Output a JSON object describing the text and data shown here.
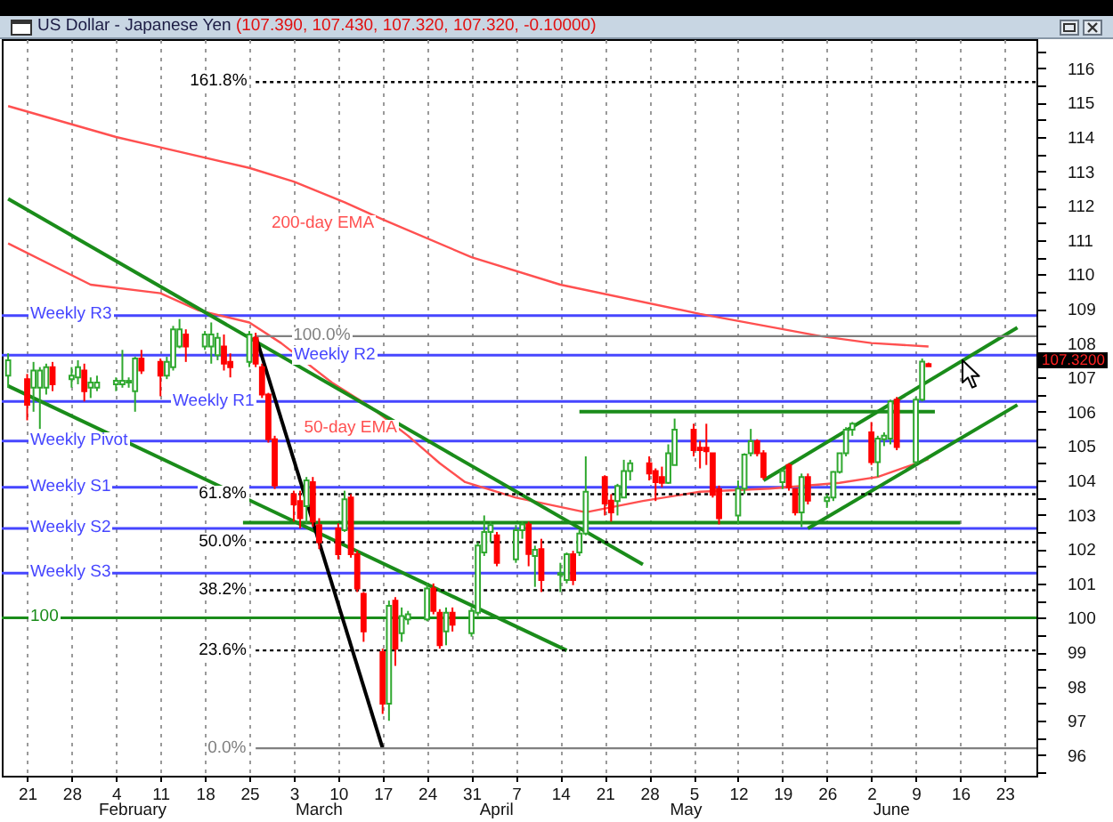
{
  "chart_data": {
    "type": "candlestick",
    "title": "US Dollar - Japanese Yen",
    "subtitle": "(107.390, 107.430, 107.320, 107.320, -0.10000)",
    "x": [
      "--01-18",
      "--01-21",
      "--01-22",
      "--01-23",
      "--01-24",
      "--01-25",
      "--01-28",
      "--01-29",
      "--01-30",
      "--01-31",
      "--02-01",
      "--02-04",
      "--02-05",
      "--02-06",
      "--02-07",
      "--02-08",
      "--02-11",
      "--02-12",
      "--02-13",
      "--02-14",
      "--02-15",
      "--02-18",
      "--02-19",
      "--02-20",
      "--02-21",
      "--02-22",
      "--02-25",
      "--02-26",
      "--02-27",
      "--02-28",
      "--02-29",
      "--03-03",
      "--03-04",
      "--03-05",
      "--03-06",
      "--03-07",
      "--03-10",
      "--03-11",
      "--03-12",
      "--03-13",
      "--03-14",
      "--03-17",
      "--03-18",
      "--03-19",
      "--03-20",
      "--03-21",
      "--03-24",
      "--03-25",
      "--03-26",
      "--03-27",
      "--03-28",
      "--03-31",
      "--04-01",
      "--04-02",
      "--04-03",
      "--04-04",
      "--04-07",
      "--04-08",
      "--04-09",
      "--04-10",
      "--04-11",
      "--04-14",
      "--04-15",
      "--04-16",
      "--04-17",
      "--04-18",
      "--04-21",
      "--04-22",
      "--04-23",
      "--04-24",
      "--04-25",
      "--04-28",
      "--04-29",
      "--04-30",
      "--05-01",
      "--05-02",
      "--05-05",
      "--05-06",
      "--05-07",
      "--05-08",
      "--05-09",
      "--05-12",
      "--05-13",
      "--05-14",
      "--05-15",
      "--05-16",
      "--05-19",
      "--05-20",
      "--05-21",
      "--05-22",
      "--05-23",
      "--05-26",
      "--05-27",
      "--05-28",
      "--05-29",
      "--05-30",
      "--06-02",
      "--06-03",
      "--06-04",
      "--06-05",
      "--06-06",
      "--06-09",
      "--06-10",
      "--06-11"
    ],
    "ohlc": [
      [
        107.05,
        107.7,
        106.7,
        107.5
      ],
      [
        106.95,
        107.1,
        105.75,
        106.2
      ],
      [
        106.7,
        107.45,
        106.0,
        107.2
      ],
      [
        106.7,
        107.3,
        105.5,
        107.2
      ],
      [
        106.7,
        107.4,
        106.5,
        107.3
      ],
      [
        107.3,
        107.45,
        106.6,
        106.8
      ],
      [
        106.95,
        107.3,
        106.7,
        107.05
      ],
      [
        107.0,
        107.5,
        106.8,
        107.3
      ],
      [
        107.2,
        107.4,
        106.3,
        106.6
      ],
      [
        106.7,
        107.0,
        106.4,
        106.85
      ],
      [
        106.7,
        107.05,
        106.6,
        106.85
      ],
      [
        106.8,
        107.0,
        106.6,
        106.9
      ],
      [
        106.8,
        107.8,
        106.7,
        106.9
      ],
      [
        106.85,
        107.0,
        106.7,
        106.9
      ],
      [
        106.6,
        107.6,
        106.0,
        107.55
      ],
      [
        107.55,
        107.8,
        107.1,
        107.2
      ],
      [
        107.45,
        107.55,
        106.45,
        107.05
      ],
      [
        107.05,
        107.6,
        106.95,
        107.45
      ],
      [
        107.3,
        108.5,
        107.2,
        108.4
      ],
      [
        107.9,
        108.7,
        107.85,
        108.4
      ],
      [
        108.25,
        108.4,
        107.45,
        107.9
      ],
      [
        107.9,
        108.35,
        107.8,
        108.25
      ],
      [
        107.9,
        108.6,
        107.4,
        108.25
      ],
      [
        107.65,
        108.3,
        107.5,
        108.15
      ],
      [
        107.9,
        108.25,
        107.2,
        107.4
      ],
      [
        107.45,
        107.7,
        107.0,
        107.3
      ],
      [
        107.45,
        108.35,
        107.3,
        108.25
      ],
      [
        108.15,
        108.3,
        107.3,
        107.4
      ],
      [
        107.3,
        107.4,
        106.4,
        106.5
      ],
      [
        106.5,
        106.55,
        105.1,
        105.2
      ],
      [
        105.2,
        105.3,
        103.75,
        103.85
      ],
      [
        103.6,
        103.7,
        102.8,
        103.3
      ],
      [
        103.4,
        103.7,
        102.6,
        102.9
      ],
      [
        103.25,
        104.1,
        102.75,
        104.0
      ],
      [
        103.95,
        104.1,
        102.65,
        102.8
      ],
      [
        102.7,
        102.9,
        102.0,
        102.2
      ],
      [
        102.6,
        102.75,
        101.7,
        101.85
      ],
      [
        102.55,
        103.7,
        102.5,
        103.45
      ],
      [
        103.5,
        103.6,
        101.75,
        101.85
      ],
      [
        101.85,
        101.95,
        100.75,
        100.85
      ],
      [
        100.7,
        100.75,
        99.3,
        99.6
      ],
      [
        99.0,
        99.1,
        97.2,
        97.5
      ],
      [
        97.5,
        100.5,
        97.0,
        100.35
      ],
      [
        100.5,
        100.6,
        98.6,
        99.1
      ],
      [
        99.55,
        100.3,
        99.3,
        100.05
      ],
      [
        99.95,
        100.2,
        99.8,
        100.1
      ],
      [
        99.95,
        101.0,
        99.9,
        100.85
      ],
      [
        100.85,
        101.0,
        100.1,
        100.2
      ],
      [
        100.15,
        100.25,
        99.1,
        99.2
      ],
      [
        99.6,
        100.3,
        99.2,
        100.15
      ],
      [
        100.15,
        100.3,
        99.6,
        99.8
      ],
      [
        99.55,
        100.3,
        99.45,
        100.2
      ],
      [
        100.15,
        102.2,
        100.05,
        102.1
      ],
      [
        101.9,
        102.98,
        101.8,
        102.5
      ],
      [
        102.5,
        102.8,
        102.2,
        102.7
      ],
      [
        102.4,
        102.5,
        101.5,
        101.6
      ],
      [
        101.7,
        102.7,
        101.6,
        102.55
      ],
      [
        102.55,
        102.8,
        102.3,
        102.72
      ],
      [
        102.72,
        102.8,
        101.5,
        101.86
      ],
      [
        101.8,
        102.1,
        100.9,
        101.98
      ],
      [
        102.0,
        102.3,
        100.75,
        101.1
      ],
      [
        101.25,
        101.6,
        100.75,
        101.3
      ],
      [
        101.1,
        101.9,
        101.0,
        101.85
      ],
      [
        101.85,
        101.95,
        100.95,
        101.1
      ],
      [
        101.9,
        102.55,
        101.8,
        102.45
      ],
      [
        102.45,
        104.7,
        102.4,
        103.67
      ],
      [
        104.1,
        104.15,
        102.98,
        103.33
      ],
      [
        103.41,
        103.6,
        102.8,
        103.07
      ],
      [
        103.4,
        103.9,
        102.98,
        103.84
      ],
      [
        103.5,
        104.6,
        103.5,
        104.27
      ],
      [
        104.27,
        104.6,
        104.0,
        104.5
      ],
      [
        104.5,
        104.7,
        104.0,
        104.2
      ],
      [
        104.27,
        104.35,
        103.4,
        103.95
      ],
      [
        104.1,
        104.4,
        103.8,
        103.93
      ],
      [
        103.93,
        105.05,
        103.9,
        104.79
      ],
      [
        104.45,
        105.8,
        104.45,
        105.48
      ],
      [
        105.48,
        105.65,
        104.7,
        104.88
      ],
      [
        104.95,
        105.15,
        104.35,
        104.88
      ],
      [
        104.95,
        105.65,
        104.45,
        104.85
      ],
      [
        104.79,
        104.8,
        103.5,
        103.58
      ],
      [
        103.75,
        103.85,
        102.72,
        102.9
      ],
      [
        102.98,
        104.0,
        102.72,
        103.76
      ],
      [
        103.76,
        104.79,
        103.6,
        104.75
      ],
      [
        104.79,
        105.5,
        104.7,
        105.14
      ],
      [
        105.14,
        105.2,
        104.7,
        104.79
      ],
      [
        104.79,
        104.88,
        104.02,
        104.1
      ],
      [
        103.95,
        104.35,
        103.75,
        104.27
      ],
      [
        104.45,
        104.5,
        103.7,
        103.8
      ],
      [
        103.75,
        103.76,
        102.98,
        103.07
      ],
      [
        103.07,
        104.2,
        102.64,
        104.1
      ],
      [
        104.1,
        104.2,
        103.3,
        103.41
      ],
      [
        103.4,
        103.6,
        103.2,
        103.5
      ],
      [
        103.5,
        104.27,
        103.4,
        104.25
      ],
      [
        104.25,
        104.8,
        104.2,
        104.79
      ],
      [
        104.79,
        105.55,
        104.7,
        105.48
      ],
      [
        105.48,
        105.7,
        105.3,
        105.65
      ],
      [
        105.4,
        105.7,
        104.45,
        104.53
      ],
      [
        104.53,
        105.3,
        104.1,
        105.22
      ],
      [
        105.2,
        105.4,
        105.0,
        105.3
      ],
      [
        105.22,
        106.35,
        105.05,
        106.3
      ],
      [
        106.35,
        106.43,
        104.88,
        104.97
      ],
      [
        104.53,
        106.43,
        104.45,
        106.35
      ],
      [
        106.35,
        107.55,
        106.3,
        107.46
      ],
      [
        107.39,
        107.43,
        107.32,
        107.32
      ]
    ],
    "colors": [
      "#2fa82f",
      "#ff0000",
      "#2fa82f",
      "#2fa82f",
      "#2fa82f",
      "#ff0000",
      "#2fa82f",
      "#2fa82f",
      "#ff0000",
      "#2fa82f",
      "#2fa82f",
      "#2fa82f",
      "#2fa82f",
      "#2fa82f",
      "#2fa82f",
      "#ff0000",
      "#ff0000",
      "#2fa82f",
      "#2fa82f",
      "#2fa82f",
      "#ff0000",
      "#2fa82f",
      "#2fa82f",
      "#2fa82f",
      "#ff0000",
      "#ff0000",
      "#2fa82f",
      "#ff0000",
      "#ff0000",
      "#ff0000",
      "#ff0000",
      "#ff0000",
      "#ff0000",
      "#2fa82f",
      "#ff0000",
      "#ff0000",
      "#ff0000",
      "#2fa82f",
      "#ff0000",
      "#ff0000",
      "#ff0000",
      "#ff0000",
      "#2fa82f",
      "#ff0000",
      "#2fa82f",
      "#2fa82f",
      "#2fa82f",
      "#ff0000",
      "#ff0000",
      "#2fa82f",
      "#ff0000",
      "#2fa82f",
      "#2fa82f",
      "#2fa82f",
      "#2fa82f",
      "#ff0000",
      "#2fa82f",
      "#2fa82f",
      "#ff0000",
      "#2fa82f",
      "#ff0000",
      "#2fa82f",
      "#2fa82f",
      "#ff0000",
      "#2fa82f",
      "#2fa82f",
      "#ff0000",
      "#ff0000",
      "#2fa82f",
      "#2fa82f",
      "#2fa82f",
      "#ff0000",
      "#ff0000",
      "#ff0000",
      "#2fa82f",
      "#2fa82f",
      "#ff0000",
      "#ff0000",
      "#ff0000",
      "#ff0000",
      "#ff0000",
      "#2fa82f",
      "#2fa82f",
      "#2fa82f",
      "#ff0000",
      "#ff0000",
      "#2fa82f",
      "#ff0000",
      "#ff0000",
      "#2fa82f",
      "#ff0000",
      "#2fa82f",
      "#2fa82f",
      "#2fa82f",
      "#2fa82f",
      "#2fa82f",
      "#ff0000",
      "#2fa82f",
      "#2fa82f",
      "#2fa82f",
      "#ff0000",
      "#2fa82f",
      "#2fa82f",
      "#ff0000"
    ],
    "xlim": [
      "--01-17",
      "--06-28"
    ],
    "xticks": [
      {
        "value": "--01-21",
        "label": "21"
      },
      {
        "value": "--01-28",
        "label": "28"
      },
      {
        "value": "--02-04",
        "label": "4"
      },
      {
        "value": "--02-11",
        "label": "11"
      },
      {
        "value": "--02-18",
        "label": "18"
      },
      {
        "value": "--02-25",
        "label": "25"
      },
      {
        "value": "--03-03",
        "label": "3"
      },
      {
        "value": "--03-10",
        "label": "10"
      },
      {
        "value": "--03-17",
        "label": "17"
      },
      {
        "value": "--03-24",
        "label": "24"
      },
      {
        "value": "--03-31",
        "label": "31"
      },
      {
        "value": "--04-07",
        "label": "7"
      },
      {
        "value": "--04-14",
        "label": "14"
      },
      {
        "value": "--04-21",
        "label": "21"
      },
      {
        "value": "--04-28",
        "label": "28"
      },
      {
        "value": "--05-05",
        "label": "5"
      },
      {
        "value": "--05-12",
        "label": "12"
      },
      {
        "value": "--05-19",
        "label": "19"
      },
      {
        "value": "--05-26",
        "label": "26"
      },
      {
        "value": "--06-02",
        "label": "2"
      },
      {
        "value": "--06-09",
        "label": "9"
      },
      {
        "value": "--06-16",
        "label": "16"
      },
      {
        "value": "--06-23",
        "label": "23"
      }
    ],
    "ylim": [
      95.4,
      116.85
    ],
    "yticks": [
      {
        "value": 95.5,
        "label": null
      },
      96,
      {
        "value": 96.5,
        "label": null
      },
      97,
      {
        "value": 97.5,
        "label": null
      },
      98,
      {
        "value": 98.5,
        "label": null
      },
      99,
      {
        "value": 99.5,
        "label": null
      },
      100,
      {
        "value": 100.5,
        "label": null
      },
      101,
      {
        "value": 101.5,
        "label": null
      },
      102,
      {
        "value": 102.5,
        "label": null
      },
      103,
      {
        "value": 103.5,
        "label": null
      },
      104,
      {
        "value": 104.5,
        "label": null
      },
      105,
      {
        "value": 105.5,
        "label": null
      },
      106,
      {
        "value": 106.5,
        "label": null
      },
      107,
      {
        "value": 107.5,
        "label": null
      },
      108,
      {
        "value": 108.5,
        "label": null
      },
      109,
      {
        "value": 109.5,
        "label": null
      },
      110,
      {
        "value": 110.5,
        "label": null
      },
      111,
      {
        "value": 111.5,
        "label": null
      },
      112,
      {
        "value": 112.5,
        "label": null
      },
      113,
      {
        "value": 113.5,
        "label": null
      },
      114,
      {
        "value": 114.5,
        "label": null
      },
      115,
      {
        "value": 115.5,
        "label": null
      },
      116,
      {
        "value": 116.5,
        "label": null
      }
    ],
    "grid": "x",
    "series": [
      {
        "name": "200-day EMA",
        "type": "line",
        "color": "#ff5050",
        "x": [
          "--01-18",
          "--02-04",
          "--02-11",
          "--02-25",
          "--03-03",
          "--03-11",
          "--03-17",
          "--03-31",
          "--04-14",
          "--05-06",
          "--05-25",
          "--06-02",
          "--06-11"
        ],
        "values": [
          114.9,
          114.0,
          113.7,
          113.1,
          112.7,
          112.1,
          111.6,
          110.5,
          109.7,
          108.85,
          108.2,
          108.0,
          107.9
        ]
      },
      {
        "name": "50-day EMA",
        "type": "line",
        "color": "#ff5050",
        "x": [
          "--01-18",
          "--01-31",
          "--02-11",
          "--02-17",
          "--02-25",
          "--03-01",
          "--03-09",
          "--03-15",
          "--03-21",
          "--03-26",
          "--03-30",
          "--04-07",
          "--04-18",
          "--04-27",
          "--05-06",
          "--05-17",
          "--05-28",
          "--06-03",
          "--06-11"
        ],
        "values": [
          110.9,
          109.7,
          109.45,
          108.95,
          108.6,
          108.0,
          106.85,
          106.15,
          105.3,
          104.5,
          103.95,
          103.5,
          103.07,
          103.4,
          103.67,
          103.76,
          103.93,
          104.1,
          104.62
        ]
      },
      {
        "type": "line",
        "color": "#1a8c1a",
        "x": [
          "--01-18",
          "--04-27"
        ],
        "values": [
          112.2,
          101.55
        ]
      },
      {
        "type": "line",
        "color": "#1a8c1a",
        "x": [
          "--01-18",
          "--04-15"
        ],
        "values": [
          106.75,
          99.05
        ]
      },
      {
        "type": "line",
        "color": "#1a8c1a",
        "x": [
          "--02-24",
          "--06-16"
        ],
        "values": [
          102.77,
          102.77
        ]
      },
      {
        "type": "line",
        "color": "#1a8c1a",
        "x": [
          "--04-17",
          "--06-12"
        ],
        "values": [
          106.0,
          106.0
        ]
      },
      {
        "type": "line",
        "color": "#1a8c1a",
        "x": [
          "--05-16",
          "--06-25"
        ],
        "values": [
          104.0,
          108.45
        ]
      },
      {
        "type": "line",
        "color": "#1a8c1a",
        "x": [
          "--05-23",
          "--06-25"
        ],
        "values": [
          102.6,
          106.2
        ]
      },
      {
        "type": "line",
        "color": "#000000",
        "x": [
          "--02-26",
          "--03-17"
        ],
        "values": [
          108.2,
          96.2
        ]
      },
      {
        "name": "161.8%",
        "type": "line",
        "color": "#000000",
        "line_style": "dotted",
        "x": [
          "--02-26",
          "--06-28"
        ],
        "values": [
          115.6,
          115.6
        ]
      },
      {
        "name": "100.0%",
        "type": "line",
        "color": "#808080",
        "x": [
          "--02-26",
          "--06-28"
        ],
        "values": [
          108.2,
          108.2
        ]
      },
      {
        "name": "61.8%",
        "type": "line",
        "color": "#000000",
        "line_style": "dotted",
        "x": [
          "--02-26",
          "--06-28"
        ],
        "values": [
          103.6,
          103.6
        ]
      },
      {
        "name": "50.0%",
        "type": "line",
        "color": "#000000",
        "line_style": "dotted",
        "x": [
          "--02-26",
          "--06-28"
        ],
        "values": [
          102.2,
          102.2
        ]
      },
      {
        "name": "38.2%",
        "type": "line",
        "color": "#000000",
        "line_style": "dotted",
        "x": [
          "--02-26",
          "--06-28"
        ],
        "values": [
          100.8,
          100.8
        ]
      },
      {
        "name": "23.6%",
        "type": "line",
        "color": "#000000",
        "line_style": "dotted",
        "x": [
          "--02-26",
          "--06-28"
        ],
        "values": [
          99.05,
          99.05
        ]
      },
      {
        "name": "0.0%",
        "type": "line",
        "color": "#808080",
        "x": [
          "--02-26",
          "--06-28"
        ],
        "values": [
          96.2,
          96.2
        ]
      }
    ],
    "ref_lines": [
      {
        "axis": "y",
        "value": 108.8,
        "label": "Weekly R3",
        "color": "#4646ff"
      },
      {
        "axis": "y",
        "value": 107.65,
        "label": "Weekly R2",
        "color": "#4646ff"
      },
      {
        "axis": "y",
        "value": 106.3,
        "label": "Weekly R1",
        "color": "#4646ff"
      },
      {
        "axis": "y",
        "value": 105.15,
        "label": "Weekly Pivot",
        "color": "#4646ff"
      },
      {
        "axis": "y",
        "value": 103.8,
        "label": "Weekly S1",
        "color": "#4646ff"
      },
      {
        "axis": "y",
        "value": 102.6,
        "label": "Weekly S2",
        "color": "#4646ff"
      },
      {
        "axis": "y",
        "value": 101.3,
        "label": "Weekly S3",
        "color": "#4646ff"
      },
      {
        "axis": "y",
        "value": 100,
        "label": "100",
        "color": "#1a8c1a"
      }
    ],
    "annotations": [
      "107.3200",
      "February",
      "March",
      "April",
      "May",
      "June"
    ]
  }
}
